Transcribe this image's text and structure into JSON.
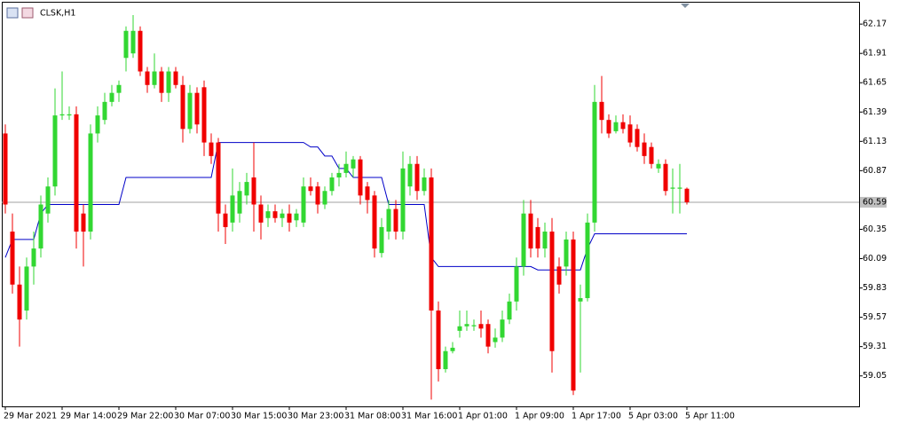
{
  "chart_data": {
    "type": "candlestick",
    "title": "CLSK,H1",
    "categories": [
      "29 Mar 2021",
      null,
      null,
      null,
      null,
      null,
      null,
      null,
      "29 Mar 14:00",
      null,
      null,
      null,
      null,
      null,
      null,
      null,
      "29 Mar 22:00",
      null,
      null,
      null,
      null,
      null,
      null,
      null,
      "30 Mar 07:00",
      null,
      null,
      null,
      null,
      null,
      null,
      null,
      "30 Mar 15:00",
      null,
      null,
      null,
      null,
      null,
      null,
      null,
      "30 Mar 23:00",
      null,
      null,
      null,
      null,
      null,
      null,
      null,
      "31 Mar 08:00",
      null,
      null,
      null,
      null,
      null,
      null,
      null,
      "31 Mar 16:00",
      null,
      null,
      null,
      null,
      null,
      null,
      null,
      "1 Apr 01:00",
      null,
      null,
      null,
      null,
      null,
      null,
      null,
      "1 Apr 09:00",
      null,
      null,
      null,
      null,
      null,
      null,
      null,
      "1 Apr 17:00",
      null,
      null,
      null,
      null,
      null,
      null,
      null,
      "5 Apr 03:00",
      null,
      null,
      null,
      null,
      null,
      null,
      null,
      "5 Apr 11:00"
    ],
    "open": [
      61.2,
      60.33,
      59.86,
      59.63,
      60.02,
      60.18,
      60.49,
      60.73,
      61.36,
      61.36,
      61.37,
      60.49,
      60.33,
      61.2,
      61.32,
      61.48,
      61.56,
      61.87,
      61.91,
      62.11,
      61.75,
      61.63,
      61.75,
      61.56,
      61.75,
      61.63,
      61.24,
      61.56,
      61.61,
      61.12,
      61.12,
      60.49,
      60.41,
      60.49,
      60.65,
      60.81,
      60.57,
      60.45,
      60.51,
      60.45,
      60.49,
      60.43,
      60.41,
      60.73,
      60.73,
      60.57,
      60.69,
      60.81,
      60.85,
      60.89,
      60.97,
      60.73,
      60.65,
      60.14,
      60.33,
      60.53,
      60.33,
      60.73,
      60.93,
      60.69,
      60.81,
      59.63,
      59.11,
      59.27,
      59.45,
      59.49,
      59.49,
      59.51,
      59.51,
      59.35,
      59.39,
      59.55,
      59.71,
      60.02,
      60.49,
      60.37,
      60.18,
      60.33,
      60.02,
      60.02,
      60.26,
      59.71,
      59.74,
      60.41,
      61.48,
      61.32,
      61.22,
      61.3,
      61.28,
      61.24,
      61.12,
      61.08,
      60.89,
      60.93,
      60.71,
      60.71,
      60.71
    ],
    "high": [
      61.28,
      60.49,
      60.02,
      60.1,
      60.33,
      60.65,
      60.81,
      61.6,
      61.75,
      61.44,
      61.44,
      60.57,
      61.28,
      61.44,
      61.56,
      61.63,
      61.67,
      62.15,
      62.25,
      62.15,
      61.79,
      61.91,
      61.79,
      61.79,
      61.79,
      61.71,
      61.63,
      61.61,
      61.67,
      61.2,
      61.16,
      60.57,
      60.89,
      60.77,
      60.85,
      61.12,
      60.65,
      60.57,
      60.57,
      60.53,
      60.57,
      60.53,
      60.81,
      60.81,
      60.77,
      60.73,
      60.85,
      60.93,
      61.04,
      61.0,
      61.0,
      60.77,
      60.69,
      60.45,
      60.61,
      60.61,
      61.04,
      61.0,
      61.0,
      60.89,
      60.89,
      59.71,
      59.31,
      59.35,
      59.63,
      59.63,
      59.55,
      59.63,
      59.55,
      59.47,
      59.63,
      59.78,
      60.1,
      60.61,
      60.61,
      60.45,
      60.41,
      60.45,
      60.1,
      60.33,
      60.33,
      59.86,
      60.49,
      61.63,
      61.71,
      61.37,
      61.36,
      61.37,
      61.36,
      61.28,
      61.2,
      61.12,
      60.97,
      60.97,
      60.89,
      60.93,
      60.72
    ],
    "low": [
      60.49,
      59.78,
      59.31,
      59.55,
      59.86,
      60.1,
      60.41,
      60.65,
      61.32,
      61.32,
      60.18,
      60.02,
      60.26,
      61.12,
      61.28,
      61.44,
      61.48,
      61.75,
      61.87,
      61.71,
      61.56,
      61.6,
      61.48,
      61.48,
      61.6,
      61.12,
      61.2,
      61.2,
      61.0,
      60.93,
      60.33,
      60.22,
      60.33,
      60.41,
      60.57,
      60.33,
      60.26,
      60.37,
      60.41,
      60.37,
      60.33,
      60.37,
      60.37,
      60.65,
      60.49,
      60.53,
      60.65,
      60.73,
      60.81,
      60.81,
      60.57,
      60.49,
      60.1,
      60.1,
      60.26,
      60.26,
      60.26,
      60.65,
      60.61,
      60.65,
      58.84,
      59.0,
      59.08,
      59.25,
      59.39,
      59.45,
      59.45,
      59.39,
      59.25,
      59.3,
      59.35,
      59.51,
      59.63,
      59.94,
      60.1,
      60.1,
      60.1,
      59.08,
      59.78,
      59.94,
      58.88,
      59.08,
      59.71,
      60.33,
      61.2,
      61.16,
      61.2,
      61.2,
      61.08,
      61.04,
      60.93,
      60.89,
      60.85,
      60.65,
      60.49,
      60.49,
      60.57
    ],
    "close": [
      60.57,
      59.86,
      59.55,
      60.02,
      60.18,
      60.57,
      60.73,
      61.36,
      61.37,
      61.37,
      60.33,
      60.33,
      61.2,
      61.36,
      61.48,
      61.56,
      61.63,
      62.11,
      62.11,
      61.75,
      61.63,
      61.75,
      61.56,
      61.75,
      61.63,
      61.24,
      61.56,
      61.28,
      61.12,
      61.0,
      60.49,
      60.37,
      60.65,
      60.69,
      60.77,
      60.57,
      60.41,
      60.51,
      60.45,
      60.49,
      60.41,
      60.49,
      60.73,
      60.69,
      60.57,
      60.69,
      60.81,
      60.85,
      60.93,
      60.97,
      60.65,
      60.61,
      60.18,
      60.37,
      60.53,
      60.33,
      60.89,
      60.93,
      60.69,
      60.81,
      59.63,
      59.11,
      59.27,
      59.3,
      59.49,
      59.51,
      59.5,
      59.47,
      59.31,
      59.39,
      59.55,
      59.71,
      60.02,
      60.49,
      60.18,
      60.18,
      60.33,
      59.27,
      59.86,
      60.26,
      58.92,
      59.74,
      60.41,
      61.48,
      61.32,
      61.2,
      61.3,
      61.24,
      61.12,
      61.08,
      61.0,
      60.93,
      60.93,
      60.69,
      60.72,
      60.72,
      60.59
    ],
    "up_color": "#32d732",
    "down_color": "#f00000",
    "lines": [
      {
        "color": "#0000c8",
        "values": [
          60.1,
          60.26,
          60.26,
          60.26,
          60.26,
          60.49,
          60.57,
          60.57,
          60.57,
          60.57,
          60.57,
          60.57,
          60.57,
          60.57,
          60.57,
          60.57,
          60.57,
          60.81,
          60.81,
          60.81,
          60.81,
          60.81,
          60.81,
          60.81,
          60.81,
          60.81,
          60.81,
          60.81,
          60.81,
          60.81,
          61.12,
          61.12,
          61.12,
          61.12,
          61.12,
          61.12,
          61.12,
          61.12,
          61.12,
          61.12,
          61.12,
          61.12,
          61.12,
          61.08,
          61.08,
          61.0,
          61.0,
          60.89,
          60.89,
          60.81,
          60.81,
          60.81,
          60.81,
          60.81,
          60.57,
          60.57,
          60.57,
          60.57,
          60.57,
          60.57,
          60.1,
          60.02,
          60.02,
          60.02,
          60.02,
          60.02,
          60.02,
          60.02,
          60.02,
          60.02,
          60.02,
          60.02,
          60.02,
          60.02,
          60.02,
          59.99,
          59.99,
          59.99,
          59.99,
          59.99,
          59.99,
          59.99,
          60.18,
          60.31,
          60.31,
          60.31,
          60.31,
          60.31,
          60.31,
          60.31,
          60.31,
          60.31,
          60.31,
          60.31,
          60.31,
          60.31,
          60.31
        ]
      }
    ],
    "last_price": 60.59,
    "ylim": [
      58.78,
      62.36
    ],
    "yticks": [
      62.17,
      61.91,
      61.65,
      61.39,
      61.13,
      60.87,
      60.35,
      60.09,
      59.83,
      59.57,
      59.31,
      59.05
    ],
    "grid": false
  }
}
